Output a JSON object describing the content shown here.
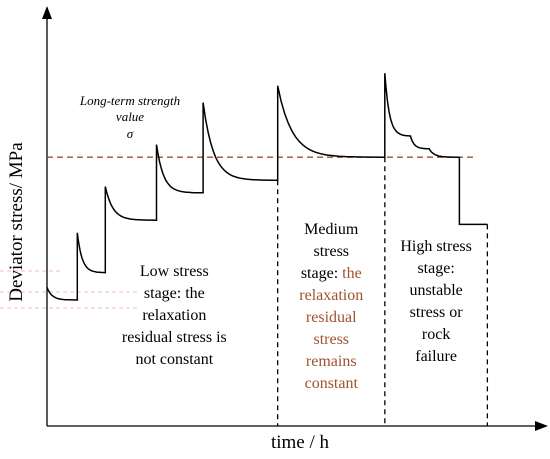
{
  "chart_data": {
    "type": "line",
    "xlabel": "time / h",
    "ylabel": "Deviator stress/ MPa",
    "x_range": [
      0,
      100
    ],
    "y_range": [
      0,
      100
    ],
    "axis_tick_labels": "none",
    "grid": false,
    "legend": "none",
    "threshold": {
      "label_lines": [
        "Long-term strength",
        "value"
      ],
      "symbol": "σ",
      "value": 64,
      "style": "dashed",
      "color": "#a0522d"
    },
    "stage_boundaries": [
      49.5,
      72.5,
      94.5
    ],
    "stages": [
      {
        "text_lines": [
          "Low stress",
          "stage: the",
          "relaxation",
          "residual stress is",
          "not constant"
        ],
        "color": "#000000"
      },
      {
        "text_lines": [
          "Medium",
          "stress",
          "stage:",
          "the",
          "relaxation",
          "residual",
          "stress",
          "remains",
          "constant"
        ],
        "highlight_from_index": 3,
        "color": "#000000",
        "highlight_color": "#a0522d"
      },
      {
        "text_lines": [
          "High stress",
          "stage:",
          "unstable",
          "stress or",
          "rock",
          "failure"
        ],
        "color": "#000000"
      }
    ],
    "series": [
      {
        "segments": [
          {
            "t0": 0,
            "t1": 6.5,
            "peak": 33,
            "residual": 30
          },
          {
            "t0": 6.5,
            "t1": 12.5,
            "peak": 46,
            "residual": 36.5
          },
          {
            "t0": 12.5,
            "t1": 23.5,
            "peak": 57,
            "residual": 49
          },
          {
            "t0": 23.5,
            "t1": 33.5,
            "peak": 67,
            "residual": 55.5
          },
          {
            "t0": 33.5,
            "t1": 49.5,
            "peak": 77,
            "residual": 58.5
          },
          {
            "t0": 49.5,
            "t1": 72.5,
            "peak": 81,
            "residual": 64
          },
          {
            "t0": 72.5,
            "t1": 78,
            "peak": 84,
            "residual": 69
          },
          {
            "t0": 78,
            "t1": 82,
            "peak": 69,
            "residual": 66
          },
          {
            "t0": 82,
            "t1": 88.5,
            "peak": 66,
            "residual": 64
          },
          {
            "t0": 88.5,
            "t1": 94.5,
            "peak": 48,
            "residual": 48
          }
        ]
      }
    ]
  }
}
